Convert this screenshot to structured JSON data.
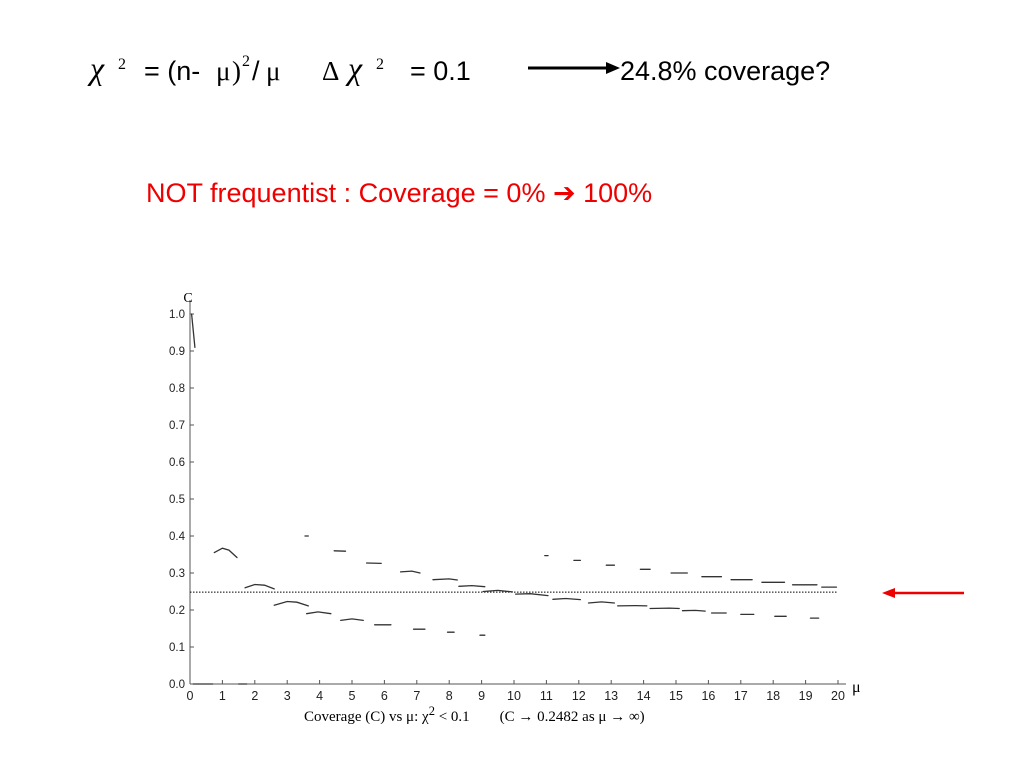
{
  "header": {
    "chi_symbol": "χ",
    "chi_exp": "2",
    "formula_open": "= (n-",
    "mu": "μ",
    "close_paren": ")",
    "formula_exp": "2",
    "slash": "/",
    "delta": "Δ",
    "delta_value": "= 0.1",
    "result": "24.8% coverage?"
  },
  "subtitle": "NOT frequentist :  Coverage = 0% ➔ 100%",
  "colors": {
    "accent": "#ee0000",
    "reference_line": "#000000",
    "curve": "#333333"
  },
  "caption": {
    "text1": "Coverage (C) vs μ:  χ",
    "exp": "2",
    "text2": " < 0.1",
    "text3": "(C → 0.2482 as μ → ∞)"
  },
  "chart_data": {
    "type": "line",
    "title": "",
    "xlabel": "μ",
    "ylabel": "C",
    "xlim": [
      0,
      20
    ],
    "ylim": [
      0,
      1.0
    ],
    "x_ticks": [
      "0",
      "1",
      "2",
      "3",
      "4",
      "5",
      "6",
      "7",
      "8",
      "9",
      "10",
      "11",
      "12",
      "13",
      "14",
      "15",
      "16",
      "17",
      "18",
      "19",
      "20"
    ],
    "y_ticks": [
      "0.0",
      "0.1",
      "0.2",
      "0.3",
      "0.4",
      "0.5",
      "0.6",
      "0.7",
      "0.8",
      "0.9",
      "1.0"
    ],
    "reference_line": {
      "y": 0.2482,
      "style": "dotted"
    },
    "grid": false,
    "legend": "none",
    "series": [
      {
        "segments": [
          [
            [
              0.05,
              1.0
            ],
            [
              0.15,
              0.91
            ]
          ],
          [
            [
              0.1,
              0.0
            ],
            [
              0.7,
              0.0
            ]
          ],
          [
            [
              1.5,
              0.0
            ],
            [
              1.75,
              0.0
            ]
          ],
          [
            [
              0.75,
              0.355
            ],
            [
              1.0,
              0.367
            ],
            [
              1.2,
              0.362
            ],
            [
              1.45,
              0.342
            ]
          ],
          [
            [
              1.7,
              0.26
            ],
            [
              2.0,
              0.269
            ],
            [
              2.3,
              0.267
            ],
            [
              2.6,
              0.257
            ]
          ],
          [
            [
              2.6,
              0.213
            ],
            [
              3.0,
              0.223
            ],
            [
              3.3,
              0.221
            ],
            [
              3.65,
              0.211
            ]
          ],
          [
            [
              3.55,
              0.4
            ],
            [
              3.65,
              0.4
            ]
          ],
          [
            [
              3.6,
              0.19
            ],
            [
              3.95,
              0.195
            ],
            [
              4.35,
              0.19
            ]
          ],
          [
            [
              4.45,
              0.36
            ],
            [
              4.8,
              0.359
            ]
          ],
          [
            [
              4.65,
              0.172
            ],
            [
              5.0,
              0.176
            ],
            [
              5.35,
              0.172
            ]
          ],
          [
            [
              5.45,
              0.327
            ],
            [
              5.9,
              0.326
            ]
          ],
          [
            [
              5.7,
              0.16
            ],
            [
              6.2,
              0.16
            ]
          ],
          [
            [
              6.5,
              0.303
            ],
            [
              6.85,
              0.305
            ],
            [
              7.1,
              0.3
            ]
          ],
          [
            [
              6.9,
              0.148
            ],
            [
              7.25,
              0.148
            ]
          ],
          [
            [
              7.5,
              0.282
            ],
            [
              8.0,
              0.284
            ],
            [
              8.25,
              0.281
            ]
          ],
          [
            [
              7.95,
              0.14
            ],
            [
              8.15,
              0.14
            ]
          ],
          [
            [
              8.3,
              0.264
            ],
            [
              8.7,
              0.266
            ],
            [
              9.1,
              0.263
            ]
          ],
          [
            [
              8.95,
              0.132
            ],
            [
              9.1,
              0.132
            ]
          ],
          [
            [
              9.05,
              0.25
            ],
            [
              9.5,
              0.253
            ],
            [
              9.95,
              0.249
            ]
          ],
          [
            [
              10.05,
              0.243
            ],
            [
              10.5,
              0.244
            ],
            [
              11.05,
              0.239
            ]
          ],
          [
            [
              10.95,
              0.347
            ],
            [
              11.05,
              0.347
            ]
          ],
          [
            [
              11.2,
              0.229
            ],
            [
              11.6,
              0.231
            ],
            [
              12.05,
              0.228
            ]
          ],
          [
            [
              11.85,
              0.334
            ],
            [
              12.05,
              0.334
            ]
          ],
          [
            [
              12.3,
              0.219
            ],
            [
              12.7,
              0.222
            ],
            [
              13.1,
              0.219
            ]
          ],
          [
            [
              12.85,
              0.321
            ],
            [
              13.1,
              0.321
            ]
          ],
          [
            [
              13.2,
              0.211
            ],
            [
              13.75,
              0.212
            ],
            [
              14.1,
              0.211
            ]
          ],
          [
            [
              13.9,
              0.31
            ],
            [
              14.2,
              0.31
            ]
          ],
          [
            [
              14.2,
              0.204
            ],
            [
              14.8,
              0.205
            ],
            [
              15.1,
              0.204
            ]
          ],
          [
            [
              14.85,
              0.3
            ],
            [
              15.35,
              0.3
            ]
          ],
          [
            [
              15.2,
              0.198
            ],
            [
              15.6,
              0.199
            ],
            [
              15.9,
              0.197
            ]
          ],
          [
            [
              15.8,
              0.29
            ],
            [
              16.4,
              0.29
            ]
          ],
          [
            [
              16.1,
              0.192
            ],
            [
              16.55,
              0.192
            ]
          ],
          [
            [
              16.7,
              0.282
            ],
            [
              17.35,
              0.282
            ]
          ],
          [
            [
              17.0,
              0.188
            ],
            [
              17.4,
              0.188
            ]
          ],
          [
            [
              17.65,
              0.275
            ],
            [
              18.35,
              0.275
            ]
          ],
          [
            [
              18.05,
              0.183
            ],
            [
              18.4,
              0.183
            ]
          ],
          [
            [
              18.6,
              0.268
            ],
            [
              19.35,
              0.268
            ]
          ],
          [
            [
              19.15,
              0.178
            ],
            [
              19.4,
              0.178
            ]
          ],
          [
            [
              19.5,
              0.262
            ],
            [
              19.95,
              0.262
            ]
          ]
        ]
      }
    ]
  }
}
